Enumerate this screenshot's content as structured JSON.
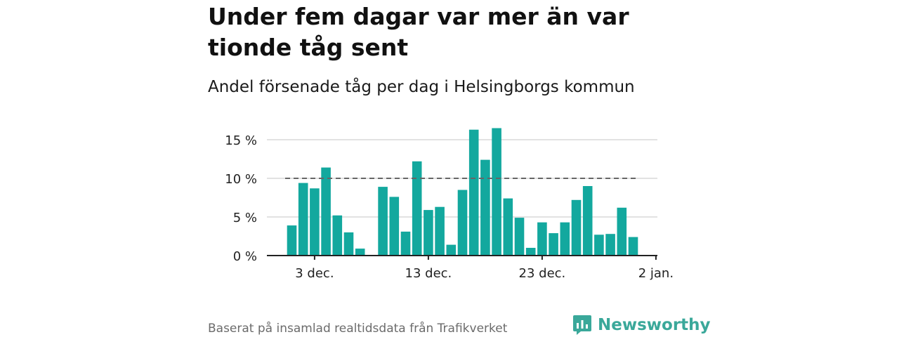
{
  "header": {
    "title": "Under fem dagar var mer än var tionde tåg sent",
    "subtitle": "Andel försenade tåg per dag i Helsingborgs kommun"
  },
  "footer": {
    "note": "Baserat på insamlad realtidsdata från Trafikverket",
    "brand": "Newsworthy"
  },
  "colors": {
    "bar": "#13a89e",
    "reference_line": "#666666",
    "grid": "#d9d9d9",
    "axis": "#222222",
    "brand": "#3aa89a"
  },
  "chart_data": {
    "type": "bar",
    "title": "Andel försenade tåg per dag i Helsingborgs kommun",
    "xlabel": "",
    "ylabel": "",
    "y_unit": "%",
    "ylim": [
      0,
      17
    ],
    "yticks": [
      0,
      5,
      10,
      15
    ],
    "ytick_labels": [
      "0 %",
      "5 %",
      "10 %",
      "15 %"
    ],
    "x_dates": [
      "2023-12-01",
      "2023-12-02",
      "2023-12-03",
      "2023-12-04",
      "2023-12-05",
      "2023-12-06",
      "2023-12-07",
      "2023-12-08",
      "2023-12-09",
      "2023-12-10",
      "2023-12-11",
      "2023-12-12",
      "2023-12-13",
      "2023-12-14",
      "2023-12-15",
      "2023-12-16",
      "2023-12-17",
      "2023-12-18",
      "2023-12-19",
      "2023-12-20",
      "2023-12-21",
      "2023-12-22",
      "2023-12-23",
      "2023-12-24",
      "2023-12-25",
      "2023-12-26",
      "2023-12-27",
      "2023-12-28",
      "2023-12-29",
      "2023-12-30",
      "2023-12-31",
      "2024-01-01",
      "2024-01-02"
    ],
    "values": [
      3.9,
      9.4,
      8.7,
      11.4,
      5.2,
      3.0,
      0.9,
      null,
      8.9,
      7.6,
      3.1,
      12.2,
      5.9,
      6.3,
      1.4,
      8.5,
      16.3,
      12.4,
      16.5,
      7.4,
      4.9,
      1.0,
      4.3,
      2.9,
      4.3,
      7.2,
      9.0,
      2.7,
      2.8,
      6.2,
      2.4,
      null,
      null
    ],
    "x_ticks": [
      "3 dec.",
      "13 dec.",
      "23 dec.",
      "2 jan."
    ],
    "reference_line": {
      "value": 10,
      "style": "dashed"
    },
    "grid": true,
    "legend": "none"
  }
}
